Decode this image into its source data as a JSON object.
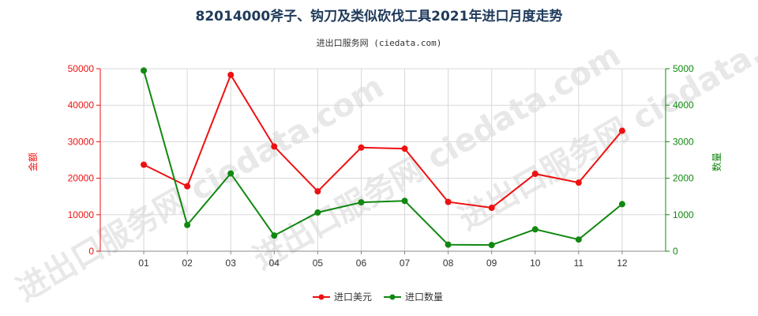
{
  "chart_data": {
    "type": "line",
    "title": "82014000斧子、钩刀及类似砍伐工具2021年进口月度走势",
    "subtitle": "进出口服务网 (ciedata.com)",
    "watermark": "进出口服务网 ciedata.com",
    "categories": [
      "01",
      "02",
      "03",
      "04",
      "05",
      "06",
      "07",
      "08",
      "09",
      "10",
      "11",
      "12"
    ],
    "series": [
      {
        "name": "进口美元",
        "axis": "left",
        "color": "#ee1111",
        "values": [
          23700,
          17800,
          48300,
          28700,
          16400,
          28400,
          28100,
          13500,
          11900,
          21200,
          18800,
          33000
        ]
      },
      {
        "name": "进口数量",
        "axis": "right",
        "color": "#118811",
        "values": [
          4950,
          720,
          2130,
          430,
          1060,
          1340,
          1380,
          180,
          170,
          600,
          320,
          1290
        ]
      }
    ],
    "y_left": {
      "label": "金额",
      "ylim": [
        0,
        50000
      ],
      "ticks": [
        "0",
        "10000",
        "20000",
        "30000",
        "40000",
        "50000"
      ],
      "color": "#ee1111"
    },
    "y_right": {
      "label": "数量",
      "ylim": [
        0,
        5000
      ],
      "ticks": [
        "0",
        "1000",
        "2000",
        "3000",
        "4000",
        "5000"
      ],
      "color": "#118811"
    },
    "grid": true,
    "legend_position": "bottom-center"
  }
}
